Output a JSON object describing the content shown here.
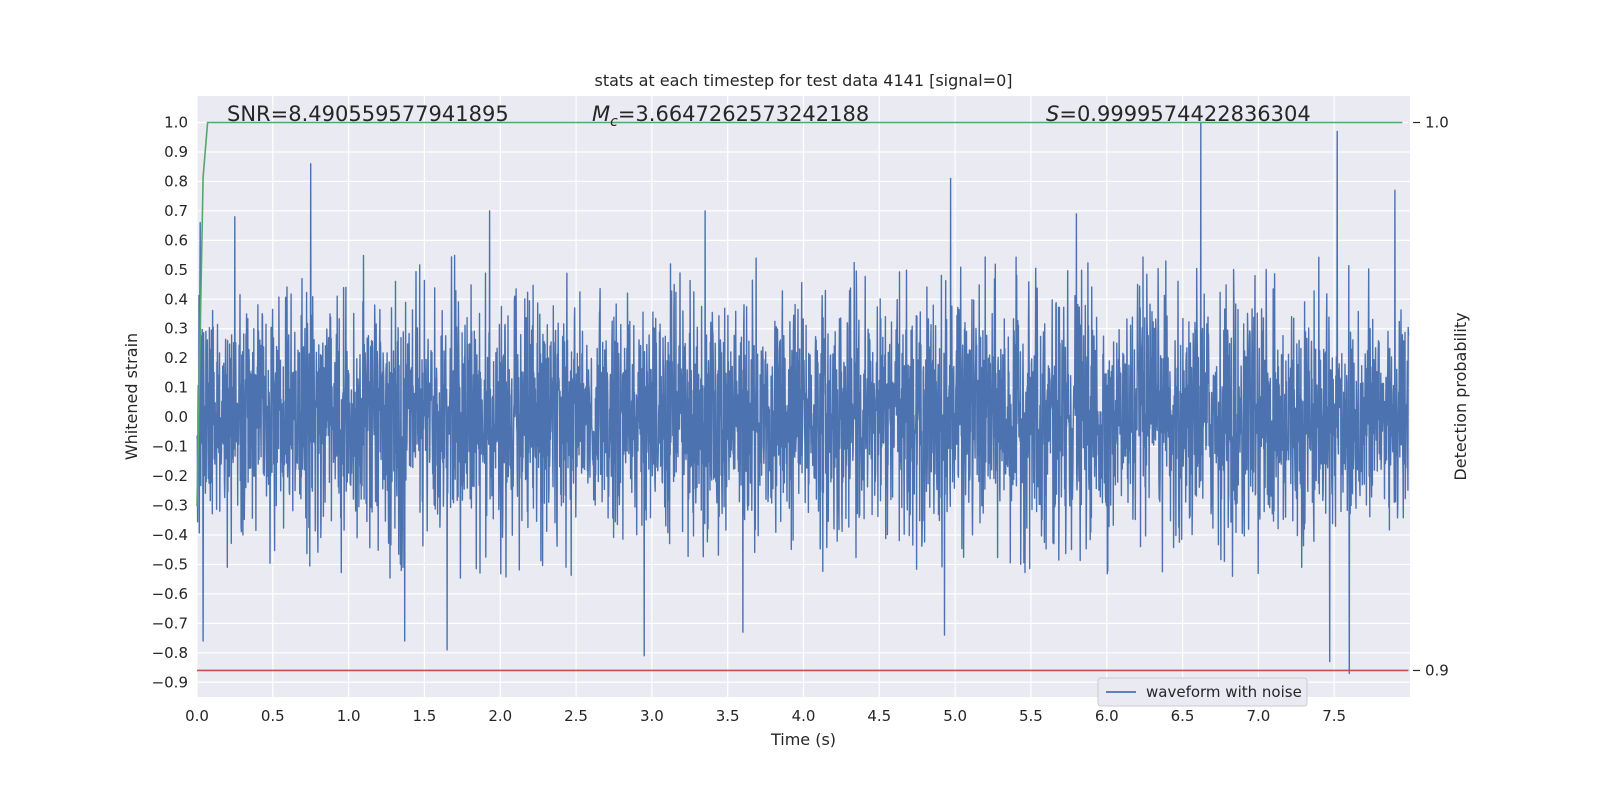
{
  "chart_data": {
    "type": "line",
    "title": "stats at each timestep for test data 4141 [signal=0]",
    "xlabel": "Time (s)",
    "ylabel": "Whitened strain",
    "ylabel_right": "Detection probability",
    "xlim": [
      0.0,
      8.0
    ],
    "ylim": [
      -0.95,
      1.09
    ],
    "ylim_right": [
      0.9,
      1.0
    ],
    "x_ticks": [
      "0.0",
      "0.5",
      "1.0",
      "1.5",
      "2.0",
      "2.5",
      "3.0",
      "3.5",
      "4.0",
      "4.5",
      "5.0",
      "5.5",
      "6.0",
      "6.5",
      "7.0",
      "7.5"
    ],
    "y_ticks": [
      "1.0",
      "0.9",
      "0.8",
      "0.7",
      "0.6",
      "0.5",
      "0.4",
      "0.3",
      "0.2",
      "0.1",
      "0.0",
      "-0.1",
      "-0.2",
      "-0.3",
      "-0.4",
      "-0.5",
      "-0.6",
      "-0.7",
      "-0.8",
      "-0.9"
    ],
    "y_ticks_right": [
      "1.0",
      "0.9"
    ],
    "grid": true,
    "legend_position": "lower-right",
    "annotations": {
      "snr": "SNR=8.490559577941895",
      "mc_symbol": "M",
      "mc_sub": "c",
      "mc_value": "=3.6647262573242188",
      "s_symbol": "S",
      "s_value": "=0.9999574422836304"
    },
    "series": [
      {
        "name": "waveform with noise",
        "axis": "left",
        "color": "#4c72b0",
        "kind": "noise",
        "duration": 7.99,
        "envelope": [
          -0.55,
          0.55
        ],
        "peaks": [
          {
            "x": 0.02,
            "y": 0.66
          },
          {
            "x": 0.04,
            "y": -0.76
          },
          {
            "x": 0.25,
            "y": 0.68
          },
          {
            "x": 0.75,
            "y": 0.86
          },
          {
            "x": 1.37,
            "y": -0.76
          },
          {
            "x": 1.65,
            "y": -0.79
          },
          {
            "x": 1.93,
            "y": 0.7
          },
          {
            "x": 2.95,
            "y": -0.81
          },
          {
            "x": 3.35,
            "y": 0.7
          },
          {
            "x": 3.6,
            "y": -0.73
          },
          {
            "x": 4.93,
            "y": -0.74
          },
          {
            "x": 4.97,
            "y": 0.81
          },
          {
            "x": 5.8,
            "y": 0.69
          },
          {
            "x": 6.62,
            "y": 1.0
          },
          {
            "x": 7.47,
            "y": -0.83
          },
          {
            "x": 7.52,
            "y": 0.97
          },
          {
            "x": 7.6,
            "y": -0.87
          },
          {
            "x": 7.9,
            "y": 0.77
          }
        ]
      },
      {
        "name": "",
        "axis": "right",
        "color": "#55a868",
        "x": [
          0.0,
          0.02,
          0.04,
          0.07,
          0.1,
          1.0,
          2.0,
          3.0,
          4.0,
          5.0,
          6.0,
          7.0,
          7.95
        ],
        "y": [
          0.93,
          0.96,
          0.99,
          1.0,
          1.0,
          1.0,
          1.0,
          1.0,
          1.0,
          1.0,
          1.0,
          1.0,
          1.0
        ]
      },
      {
        "name": "",
        "axis": "left",
        "color": "#c44e52",
        "x": [
          0.0,
          7.99
        ],
        "y": [
          -0.86,
          -0.86
        ]
      }
    ]
  }
}
